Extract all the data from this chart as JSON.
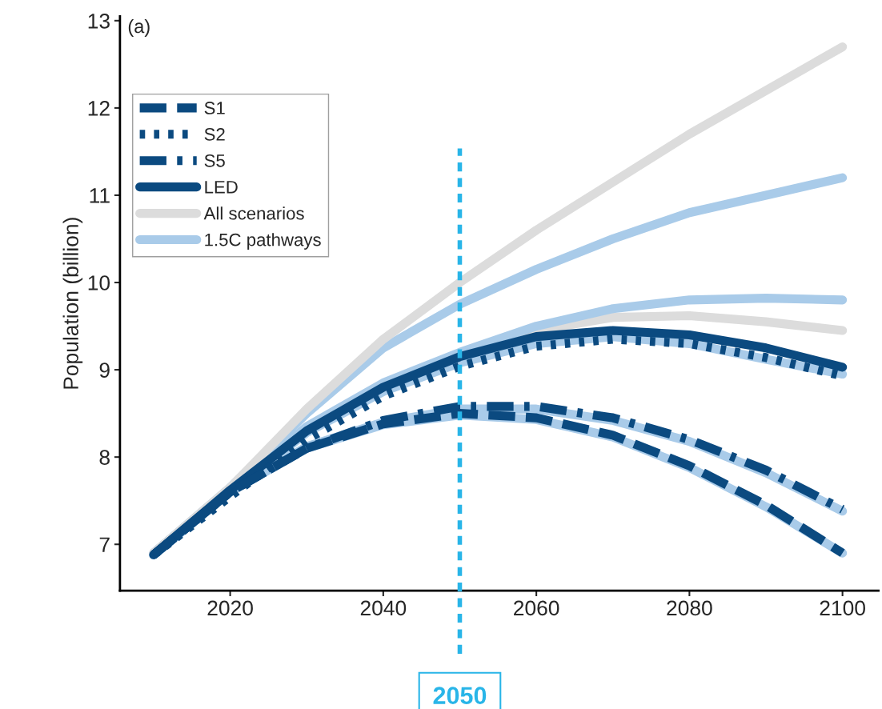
{
  "chart_data": {
    "type": "line",
    "ylabel": "Population (billion)",
    "annotations": [
      "(a)"
    ],
    "x": [
      2010,
      2020,
      2030,
      2040,
      2050,
      2060,
      2070,
      2080,
      2090,
      2100
    ],
    "series": [
      {
        "name": "S1",
        "color": "#0b4a80",
        "line_style": "dashed",
        "values": [
          6.88,
          7.6,
          8.1,
          8.38,
          8.5,
          8.45,
          8.25,
          7.9,
          7.45,
          6.9
        ]
      },
      {
        "name": "S2",
        "color": "#0b4a80",
        "line_style": "dotted",
        "values": [
          6.88,
          7.55,
          8.2,
          8.7,
          9.04,
          9.27,
          9.35,
          9.3,
          9.14,
          8.93
        ]
      },
      {
        "name": "S5",
        "color": "#0b4a80",
        "line_style": "dashdot",
        "values": [
          6.88,
          7.6,
          8.1,
          8.42,
          8.58,
          8.58,
          8.45,
          8.2,
          7.85,
          7.4
        ]
      },
      {
        "name": "LED",
        "color": "#0b4a80",
        "line_style": "solid",
        "values": [
          6.88,
          7.62,
          8.3,
          8.8,
          9.15,
          9.38,
          9.45,
          9.4,
          9.25,
          9.03
        ]
      },
      {
        "name": "All scenarios",
        "color": "#dcdcdc",
        "line_style": "solid",
        "values": [
          6.9,
          7.65,
          8.55,
          9.35,
          10.0,
          10.6,
          11.15,
          11.7,
          12.2,
          12.7
        ]
      },
      {
        "name": "1.5C pathways",
        "color": "#a9cbe9",
        "line_style": "solid",
        "values": [
          6.9,
          7.65,
          8.5,
          9.25,
          9.75,
          10.15,
          10.5,
          10.8,
          11.0,
          11.2
        ]
      },
      {
        "color": "#a9cbe9",
        "line_style": "solid",
        "values": [
          6.9,
          7.63,
          8.35,
          8.85,
          9.2,
          9.5,
          9.7,
          9.8,
          9.82,
          9.8
        ]
      },
      {
        "color": "#dcdcdc",
        "line_style": "solid",
        "values": [
          6.9,
          7.63,
          8.33,
          8.83,
          9.18,
          9.45,
          9.6,
          9.62,
          9.55,
          9.45
        ]
      },
      {
        "color": "#a9cbe9",
        "line_style": "solid",
        "values": [
          6.88,
          7.6,
          8.28,
          8.75,
          9.08,
          9.3,
          9.38,
          9.3,
          9.12,
          8.95
        ]
      },
      {
        "color": "#a9cbe9",
        "line_style": "solid",
        "values": [
          6.88,
          7.6,
          8.12,
          8.4,
          8.55,
          8.55,
          8.42,
          8.18,
          7.82,
          7.38
        ]
      },
      {
        "color": "#a9cbe9",
        "line_style": "solid",
        "values": [
          6.88,
          7.6,
          8.1,
          8.37,
          8.48,
          8.43,
          8.23,
          7.88,
          7.43,
          6.9
        ]
      }
    ],
    "xlim": [
      2005.6,
      2104.7
    ],
    "ylim": [
      6.47,
      13.05
    ],
    "xticks": [
      2020,
      2040,
      2060,
      2080,
      2100
    ],
    "yticks": [
      7,
      8,
      9,
      10,
      11,
      12,
      13
    ],
    "ref_lines": [
      {
        "axis": "x",
        "value": 2050,
        "label": "2050",
        "color": "#29b5e8",
        "line_style": "dashed"
      }
    ],
    "grid": false,
    "legend": "top left",
    "marker": "none"
  }
}
